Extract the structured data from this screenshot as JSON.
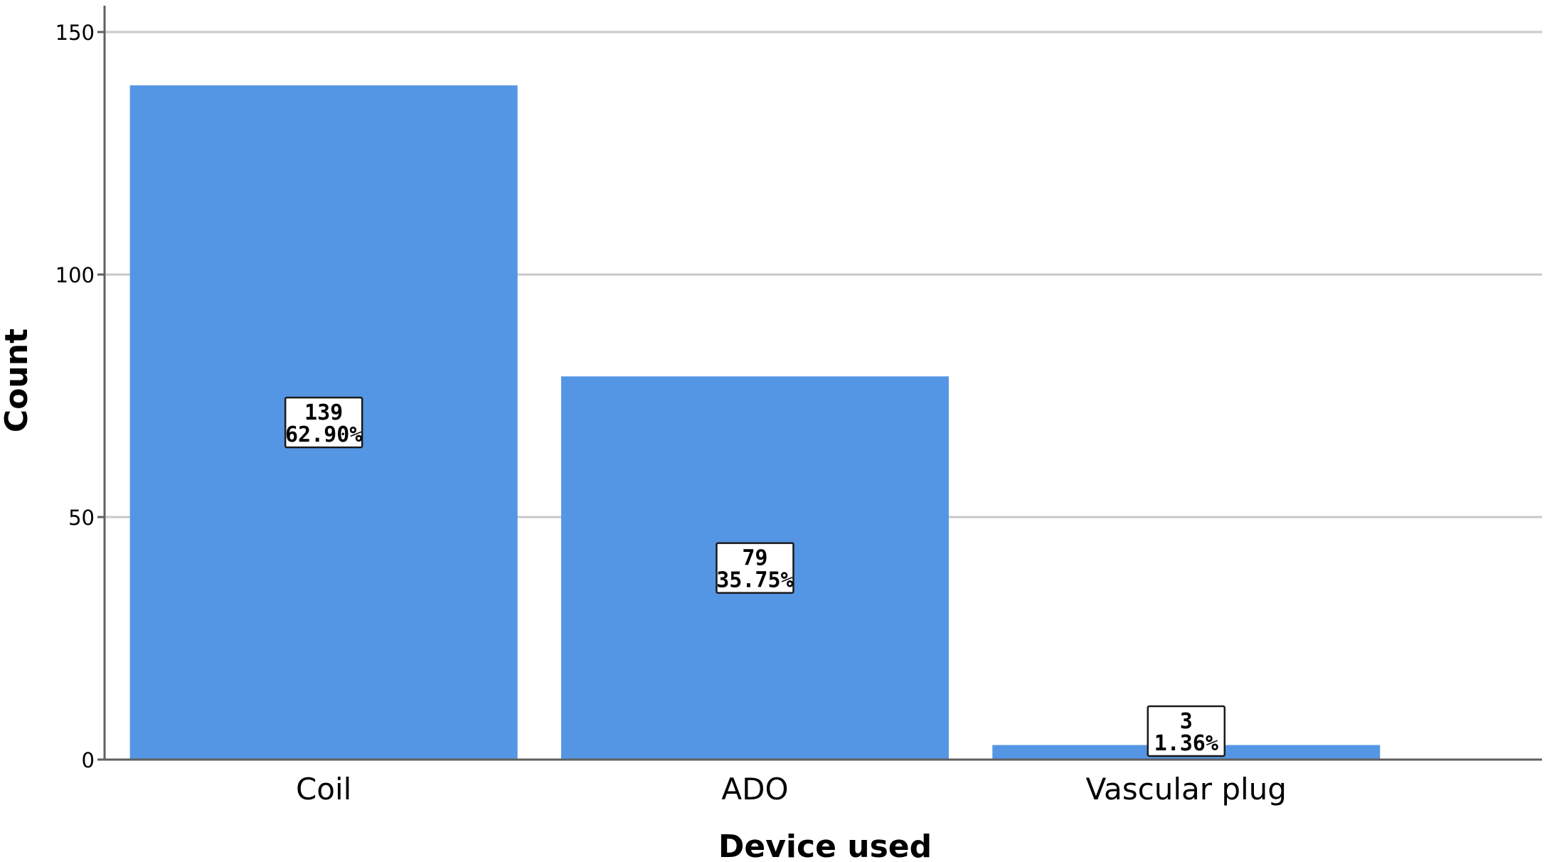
{
  "chart_data": {
    "type": "bar",
    "categories": [
      "Coil",
      "ADO",
      "Vascular plug"
    ],
    "values": [
      139,
      79,
      3
    ],
    "data_labels": [
      {
        "count": "139",
        "percent": "62.90%"
      },
      {
        "count": "79",
        "percent": "35.75%"
      },
      {
        "count": "3",
        "percent": "1.36%"
      }
    ],
    "title": "",
    "xlabel": "Device used",
    "ylabel": "Count",
    "ylim": [
      0,
      150
    ],
    "yticks": [
      "0",
      "50",
      "100",
      "150"
    ],
    "grid": true,
    "bar_color": "#5596e4",
    "grid_color": "#c8c8c8",
    "axis_color": "#606060"
  }
}
